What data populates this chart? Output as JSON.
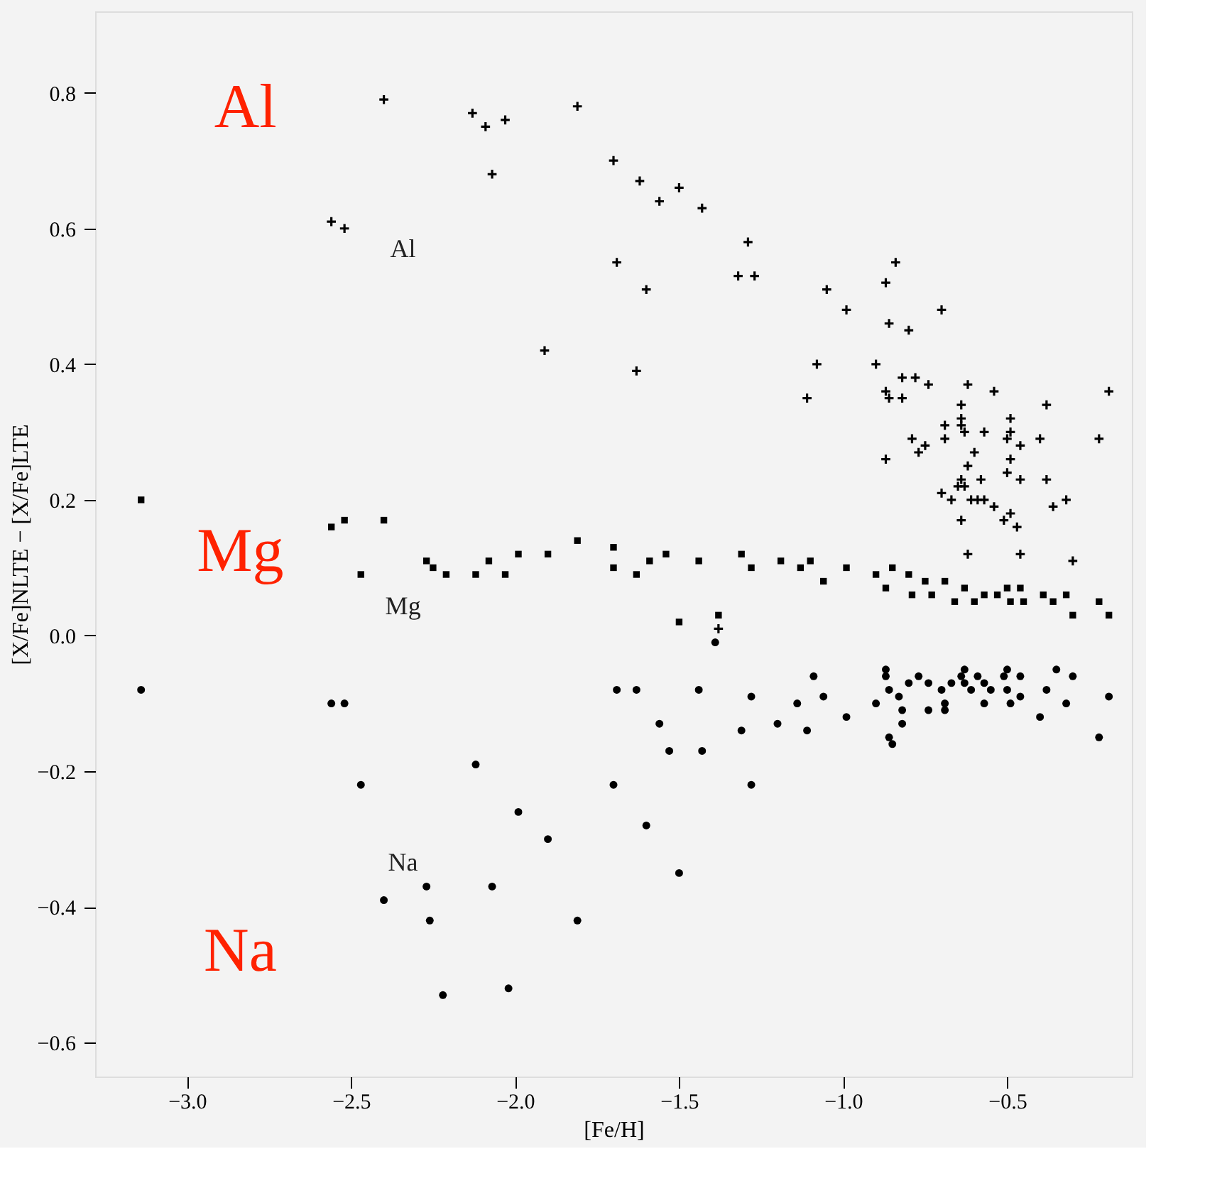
{
  "chart_data": {
    "type": "scatter",
    "xlabel": "[Fe/H]",
    "ylabel": "[X/Fe]NLTE − [X/Fe]LTE",
    "xlim": [
      -3.28,
      -0.12
    ],
    "ylim": [
      -0.65,
      0.92
    ],
    "xticks": [
      {
        "value": -3.0,
        "label": "−3.0"
      },
      {
        "value": -2.5,
        "label": "−2.5"
      },
      {
        "value": -2.0,
        "label": "−2.0"
      },
      {
        "value": -1.5,
        "label": "−1.5"
      },
      {
        "value": -1.0,
        "label": "−1.0"
      },
      {
        "value": -0.5,
        "label": "−0.5"
      }
    ],
    "yticks": [
      {
        "value": -0.6,
        "label": "−0.6"
      },
      {
        "value": -0.4,
        "label": "−0.4"
      },
      {
        "value": -0.2,
        "label": "−0.2"
      },
      {
        "value": 0.0,
        "label": "0.0"
      },
      {
        "value": 0.2,
        "label": "0.2"
      },
      {
        "value": 0.4,
        "label": "0.4"
      },
      {
        "value": 0.6,
        "label": "0.6"
      },
      {
        "value": 0.8,
        "label": "0.8"
      }
    ],
    "grid": false,
    "series": [
      {
        "color": "#000000",
        "marker": "cross",
        "x": [
          -2.4,
          -2.13,
          -2.09,
          -2.03,
          -2.07,
          -1.81,
          -2.56,
          -2.52,
          -1.91,
          -1.7,
          -1.62,
          -1.56,
          -1.5,
          -1.43,
          -1.69,
          -1.6,
          -1.63,
          -1.29,
          -1.32,
          -1.27,
          -1.05,
          -0.99,
          -1.08,
          -1.11,
          -0.87,
          -0.84,
          -0.86,
          -0.8,
          -0.7,
          -0.9,
          -0.82,
          -0.78,
          -0.74,
          -0.87,
          -0.86,
          -0.82,
          -0.62,
          -0.54,
          -0.38,
          -0.19,
          -0.64,
          -0.64,
          -0.64,
          -0.69,
          -0.63,
          -0.57,
          -0.49,
          -0.49,
          -0.5,
          -0.46,
          -0.4,
          -0.22,
          -0.79,
          -0.75,
          -0.69,
          -0.77,
          -0.87,
          -0.6,
          -0.62,
          -0.49,
          -0.5,
          -0.64,
          -0.65,
          -0.63,
          -0.58,
          -0.46,
          -0.38,
          -0.7,
          -0.67,
          -0.61,
          -0.59,
          -0.57,
          -0.54,
          -0.36,
          -0.32,
          -0.49,
          -0.51,
          -0.47,
          -0.64,
          -0.62,
          -0.46,
          -0.3,
          -1.38
        ],
        "values": [
          0.79,
          0.77,
          0.75,
          0.76,
          0.68,
          0.78,
          0.61,
          0.6,
          0.42,
          0.7,
          0.67,
          0.64,
          0.66,
          0.63,
          0.55,
          0.51,
          0.39,
          0.58,
          0.53,
          0.53,
          0.51,
          0.48,
          0.4,
          0.35,
          0.52,
          0.55,
          0.46,
          0.45,
          0.48,
          0.4,
          0.38,
          0.38,
          0.37,
          0.36,
          0.35,
          0.35,
          0.37,
          0.36,
          0.34,
          0.36,
          0.34,
          0.32,
          0.31,
          0.31,
          0.3,
          0.3,
          0.32,
          0.3,
          0.29,
          0.28,
          0.29,
          0.29,
          0.29,
          0.28,
          0.29,
          0.27,
          0.26,
          0.27,
          0.25,
          0.26,
          0.24,
          0.23,
          0.22,
          0.22,
          0.23,
          0.23,
          0.23,
          0.21,
          0.2,
          0.2,
          0.2,
          0.2,
          0.19,
          0.19,
          0.2,
          0.18,
          0.17,
          0.16,
          0.17,
          0.12,
          0.12,
          0.11,
          0.01
        ]
      },
      {
        "color": "#000000",
        "marker": "square",
        "x": [
          -3.14,
          -2.56,
          -2.52,
          -2.4,
          -2.47,
          -2.27,
          -2.25,
          -2.21,
          -2.12,
          -2.08,
          -2.03,
          -1.99,
          -1.9,
          -1.81,
          -1.7,
          -1.7,
          -1.63,
          -1.59,
          -1.54,
          -1.44,
          -1.5,
          -1.38,
          -1.31,
          -1.28,
          -1.19,
          -1.13,
          -1.1,
          -1.06,
          -0.99,
          -0.9,
          -0.87,
          -0.85,
          -0.8,
          -0.79,
          -0.75,
          -0.73,
          -0.69,
          -0.66,
          -0.63,
          -0.6,
          -0.57,
          -0.53,
          -0.5,
          -0.49,
          -0.46,
          -0.45,
          -0.39,
          -0.36,
          -0.32,
          -0.3,
          -0.22,
          -0.19
        ],
        "values": [
          0.2,
          0.16,
          0.17,
          0.17,
          0.09,
          0.11,
          0.1,
          0.09,
          0.09,
          0.11,
          0.09,
          0.12,
          0.12,
          0.14,
          0.13,
          0.1,
          0.09,
          0.11,
          0.12,
          0.11,
          0.02,
          0.03,
          0.12,
          0.1,
          0.11,
          0.1,
          0.11,
          0.08,
          0.1,
          0.09,
          0.07,
          0.1,
          0.09,
          0.06,
          0.08,
          0.06,
          0.08,
          0.05,
          0.07,
          0.05,
          0.06,
          0.06,
          0.07,
          0.05,
          0.07,
          0.05,
          0.06,
          0.05,
          0.06,
          0.03,
          0.05,
          0.03
        ]
      },
      {
        "color": "#000000",
        "marker": "circle",
        "x": [
          -3.14,
          -2.56,
          -2.52,
          -2.47,
          -2.4,
          -2.27,
          -2.26,
          -2.22,
          -2.12,
          -2.07,
          -2.02,
          -1.99,
          -1.9,
          -1.81,
          -1.69,
          -1.7,
          -1.63,
          -1.6,
          -1.56,
          -1.53,
          -1.5,
          -1.44,
          -1.43,
          -1.39,
          -1.31,
          -1.28,
          -1.28,
          -1.2,
          -1.14,
          -1.11,
          -1.09,
          -1.06,
          -0.99,
          -0.9,
          -0.87,
          -0.87,
          -0.86,
          -0.83,
          -0.82,
          -0.82,
          -0.86,
          -0.85,
          -0.8,
          -0.77,
          -0.74,
          -0.74,
          -0.7,
          -0.69,
          -0.69,
          -0.67,
          -0.64,
          -0.63,
          -0.63,
          -0.61,
          -0.59,
          -0.57,
          -0.57,
          -0.55,
          -0.51,
          -0.5,
          -0.5,
          -0.49,
          -0.46,
          -0.46,
          -0.4,
          -0.38,
          -0.35,
          -0.32,
          -0.3,
          -0.22,
          -0.19
        ],
        "values": [
          -0.08,
          -0.1,
          -0.1,
          -0.22,
          -0.39,
          -0.37,
          -0.42,
          -0.53,
          -0.19,
          -0.37,
          -0.52,
          -0.26,
          -0.3,
          -0.42,
          -0.08,
          -0.22,
          -0.08,
          -0.28,
          -0.13,
          -0.17,
          -0.35,
          -0.08,
          -0.17,
          -0.01,
          -0.14,
          -0.22,
          -0.09,
          -0.13,
          -0.1,
          -0.14,
          -0.06,
          -0.09,
          -0.12,
          -0.1,
          -0.05,
          -0.06,
          -0.08,
          -0.09,
          -0.11,
          -0.13,
          -0.15,
          -0.16,
          -0.07,
          -0.06,
          -0.07,
          -0.11,
          -0.08,
          -0.11,
          -0.1,
          -0.07,
          -0.06,
          -0.05,
          -0.07,
          -0.08,
          -0.06,
          -0.1,
          -0.07,
          -0.08,
          -0.06,
          -0.05,
          -0.08,
          -0.1,
          -0.06,
          -0.09,
          -0.12,
          -0.08,
          -0.05,
          -0.1,
          -0.06,
          -0.15,
          -0.09
        ]
      }
    ],
    "annotations": [
      "Al",
      "Mg",
      "Na",
      "Al",
      "Mg",
      "Na"
    ]
  }
}
